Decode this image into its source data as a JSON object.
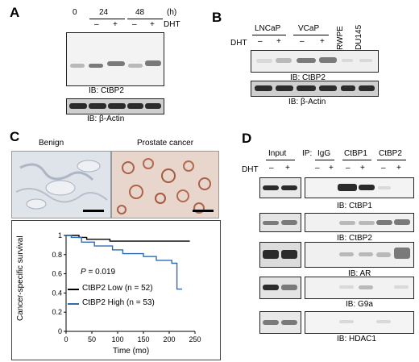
{
  "panels": {
    "A": {
      "letter": "A",
      "zero": "0",
      "t24": "24",
      "t48": "48",
      "hours": "(h)",
      "minus": "–",
      "plus": "+",
      "dht": "DHT",
      "ib1": "IB: CtBP2",
      "ib2": "IB: β-Actin"
    },
    "B": {
      "letter": "B",
      "lncap": "LNCaP",
      "vcap": "VCaP",
      "rwpe": "RWPE",
      "du145": "DU145",
      "dht": "DHT",
      "minus": "–",
      "plus": "+",
      "ib1": "IB: CtBP2",
      "ib2": "IB: β-Actin"
    },
    "C": {
      "letter": "C",
      "benign": "Benign",
      "cancer": "Prostate cancer"
    },
    "D": {
      "letter": "D",
      "input": "Input",
      "ip": "IP:",
      "igg": "IgG",
      "ctbp1": "CtBP1",
      "ctbp2": "CtBP2",
      "dht": "DHT",
      "minus": "–",
      "plus": "+",
      "ib_labels": [
        "IB: CtBP1",
        "IB: CtBP2",
        "IB: AR",
        "IB: G9a",
        "IB: HDAC1"
      ]
    }
  },
  "chart_data": {
    "type": "line",
    "ylabel": "Cancer-specific survival",
    "xlabel": "Time (mo)",
    "xlim": [
      0,
      250
    ],
    "ylim": [
      0,
      1
    ],
    "xticks": [
      "0",
      "50",
      "100",
      "150",
      "200",
      "250"
    ],
    "yticks": [
      "0",
      "0.2",
      "0.4",
      "0.6",
      "0.8",
      "1"
    ],
    "pvalue_label": "P",
    "pvalue_text": " = 0.019",
    "series": [
      {
        "name": "CtBP2 Low",
        "n_text": "(n = 52)",
        "color": "#000000",
        "x": [
          0,
          25,
          25,
          40,
          40,
          85,
          85,
          240
        ],
        "y": [
          1.0,
          1.0,
          0.98,
          0.98,
          0.96,
          0.96,
          0.94,
          0.94
        ]
      },
      {
        "name": "CtBP2 High",
        "n_text": "(n = 53)",
        "color": "#2e6bb5",
        "x": [
          0,
          10,
          10,
          30,
          30,
          55,
          55,
          90,
          90,
          110,
          110,
          150,
          150,
          175,
          175,
          205,
          205,
          215,
          215,
          225
        ],
        "y": [
          1.0,
          1.0,
          0.98,
          0.98,
          0.93,
          0.93,
          0.89,
          0.89,
          0.85,
          0.85,
          0.81,
          0.81,
          0.78,
          0.78,
          0.74,
          0.74,
          0.71,
          0.71,
          0.44,
          0.44
        ]
      }
    ]
  }
}
